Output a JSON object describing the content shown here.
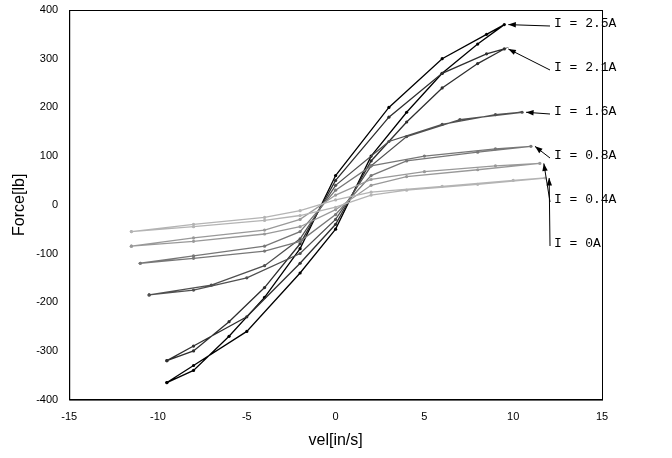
{
  "chart_data": {
    "type": "scatter",
    "x_label": "vel[in/s]",
    "y_label": "Force[lb]",
    "xlim": [
      -15,
      15
    ],
    "xticks": [
      -15,
      -10,
      -5,
      0,
      5,
      10,
      15
    ],
    "ylim": [
      -400,
      400
    ],
    "yticks": [
      -400,
      -300,
      -200,
      -100,
      0,
      100,
      200,
      300,
      400
    ],
    "grid": false,
    "marker": "circle",
    "line_style": "solid",
    "series": [
      {
        "name": "I = 2.5A",
        "color": "#000000",
        "x": [
          -9.5,
          -8,
          -5,
          -2,
          0,
          2,
          4,
          6,
          8,
          9.5,
          8.5,
          6,
          3,
          0,
          -2,
          -4,
          -6,
          -8,
          -9.5
        ],
        "values": [
          -365,
          -330,
          -260,
          -140,
          -50,
          100,
          190,
          270,
          330,
          370,
          350,
          300,
          200,
          60,
          -90,
          -190,
          -270,
          -340,
          -365
        ]
      },
      {
        "name": "I = 2.1A",
        "color": "#2e2e2e",
        "x": [
          -9.5,
          -8,
          -5,
          -2,
          0,
          2,
          4,
          6,
          8,
          9.5,
          8.5,
          6,
          3,
          0,
          -2,
          -4,
          -6,
          -8,
          -9.5
        ],
        "values": [
          -320,
          -290,
          -230,
          -120,
          -40,
          90,
          170,
          240,
          290,
          320,
          310,
          270,
          180,
          50,
          -80,
          -170,
          -240,
          -300,
          -320
        ]
      },
      {
        "name": "I = 1.6A",
        "color": "#505050",
        "x": [
          -10.5,
          -8,
          -5,
          -2,
          0,
          2,
          4,
          7,
          10.5,
          9,
          6,
          3,
          0,
          -2,
          -4,
          -7,
          -10.5
        ],
        "values": [
          -185,
          -175,
          -150,
          -100,
          -30,
          80,
          140,
          175,
          190,
          185,
          165,
          130,
          40,
          -70,
          -125,
          -165,
          -185
        ]
      },
      {
        "name": "I = 0.8A",
        "color": "#777777",
        "x": [
          -11,
          -8,
          -4,
          -2,
          0,
          2,
          4,
          8,
          11,
          9,
          5,
          2,
          0,
          -2,
          -4,
          -8,
          -11
        ],
        "values": [
          -120,
          -110,
          -95,
          -75,
          -20,
          60,
          90,
          108,
          120,
          115,
          100,
          80,
          30,
          -55,
          -85,
          -105,
          -120
        ]
      },
      {
        "name": "I = 0.4A",
        "color": "#999999",
        "x": [
          -11.5,
          -8,
          -4,
          -2,
          0,
          2,
          4,
          8,
          11.5,
          9,
          5,
          2,
          0,
          -2,
          -4,
          -8,
          -11.5
        ],
        "values": [
          -85,
          -75,
          -60,
          -45,
          -10,
          40,
          58,
          72,
          85,
          80,
          68,
          52,
          20,
          -30,
          -52,
          -68,
          -85
        ]
      },
      {
        "name": "I = 0A",
        "color": "#b4b4b4",
        "x": [
          -11.5,
          -8,
          -4,
          -2,
          0,
          2,
          4,
          8,
          11.8,
          10,
          6,
          2,
          0,
          -2,
          -4,
          -8,
          -11.5
        ],
        "values": [
          -55,
          -45,
          -32,
          -22,
          -5,
          20,
          30,
          42,
          55,
          50,
          38,
          26,
          10,
          -12,
          -26,
          -40,
          -55
        ]
      }
    ]
  }
}
